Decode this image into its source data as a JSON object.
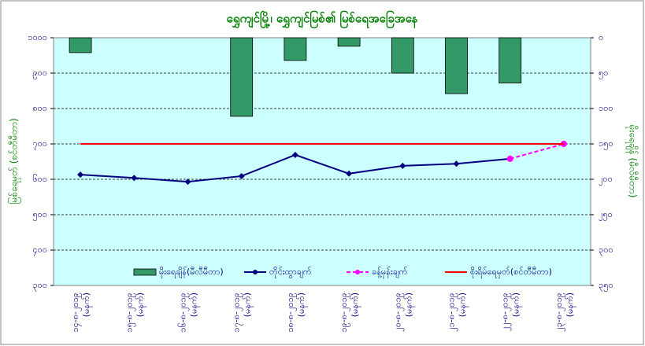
{
  "chart_data": {
    "type": "bar-line",
    "title": "ရွှေကျင်မြို့၊ ရွှေကျင်မြစ်၏ မြစ်ရေအခြေအနေ",
    "ylabel": "မြစ်ရေမှတ် (စင်တီမီတာ)",
    "y2label": "မိုးရေချိန် (မီလီမီတာ)",
    "categories": [
      "၁၄-၈-၂၀၁၉",
      "၁၅-၈-၂၀၁၉",
      "၁၆-၈-၂၀၁၉",
      "၁၇-၈-၂၀၁၉",
      "၁၈-၈-၂၀၁၉",
      "၁၉-၈-၂၀၁၉",
      "၂၀-၈-၂၀၁၉",
      "၂၁-၈-၂၀၁၉",
      "၂၂-၈-၂၀၁၉",
      "၂၃-၈-၂၀၁၉"
    ],
    "category_notes": [
      "(မနက်)",
      "(မနက်)",
      "(မနက်)",
      "(မနက်)",
      "(မနက်)",
      "(မနက်)",
      "(မနက်)",
      "(မနက်)",
      "(မနက်)",
      "(မနက်)"
    ],
    "ylim": [
      300,
      1000
    ],
    "yticks": [
      {
        "value": 300,
        "label": "၃၀၀"
      },
      {
        "value": 400,
        "label": "၄၀၀"
      },
      {
        "value": 500,
        "label": "၅၀၀"
      },
      {
        "value": 600,
        "label": "၆၀၀"
      },
      {
        "value": 700,
        "label": "၇၀၀"
      },
      {
        "value": 800,
        "label": "၈၀၀"
      },
      {
        "value": 900,
        "label": "၉၀၀"
      },
      {
        "value": 1000,
        "label": "၁၀၀၀"
      }
    ],
    "y2lim": [
      0,
      350
    ],
    "y2_inverted": true,
    "y2ticks": [
      {
        "value": 0,
        "label": "၀"
      },
      {
        "value": 50,
        "label": "၅၀"
      },
      {
        "value": 100,
        "label": "၁၀၀"
      },
      {
        "value": 150,
        "label": "၁၅၀"
      },
      {
        "value": 200,
        "label": "၂၀၀"
      },
      {
        "value": 250,
        "label": "၂၅၀"
      },
      {
        "value": 300,
        "label": "၃၀၀"
      },
      {
        "value": 350,
        "label": "၃၅၀"
      }
    ],
    "grid": true,
    "series": [
      {
        "name": "မိုးရေချိန်(မီလီမီတာ)",
        "kind": "bar",
        "axis": "y2",
        "color": "#339966",
        "values": [
          21,
          null,
          null,
          111,
          32,
          12,
          50,
          79,
          64,
          null
        ]
      },
      {
        "name": "တိုင်းထွာချက်",
        "kind": "line",
        "color": "#000080",
        "marker": true,
        "values": [
          613,
          604,
          593,
          609,
          669,
          616,
          638,
          644,
          658,
          null
        ]
      },
      {
        "name": "ခန့်မှန်းချက်",
        "kind": "line",
        "dashed": true,
        "color": "#ff00ff",
        "marker": true,
        "values": [
          null,
          null,
          null,
          null,
          null,
          null,
          null,
          null,
          658,
          700
        ]
      },
      {
        "name": "စိုးရိမ်ရေမှတ်(စင်တီမီတာ)",
        "kind": "line",
        "color": "#ff0000",
        "values": [
          700,
          700,
          700,
          700,
          700,
          700,
          700,
          700,
          700,
          700
        ]
      }
    ]
  }
}
